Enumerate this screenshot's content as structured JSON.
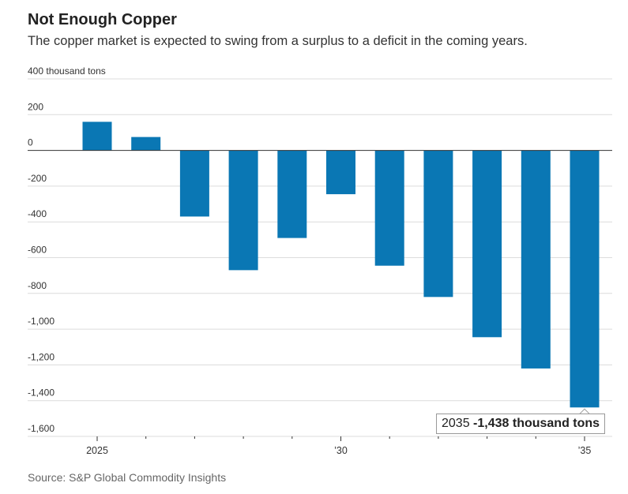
{
  "title": "Not Enough Copper",
  "subtitle": "The copper market is expected to swing from a surplus to a deficit in the coming years.",
  "source": "Source: S&P Global Commodity Insights",
  "chart_data": {
    "type": "bar",
    "title": "Not Enough Copper",
    "ylabel_unit": "400 thousand tons",
    "years": [
      2025,
      2026,
      2027,
      2028,
      2029,
      2030,
      2031,
      2032,
      2033,
      2034,
      2035
    ],
    "values": [
      160,
      75,
      -370,
      -670,
      -490,
      -245,
      -645,
      -820,
      -1045,
      -1220,
      -1438
    ],
    "ylim": [
      -1600,
      400
    ],
    "y_ticks": [
      {
        "value": 400,
        "label": "400 thousand tons"
      },
      {
        "value": 200,
        "label": "200"
      },
      {
        "value": 0,
        "label": "0"
      },
      {
        "value": -200,
        "label": "-200"
      },
      {
        "value": -400,
        "label": "-400"
      },
      {
        "value": -600,
        "label": "-600"
      },
      {
        "value": -800,
        "label": "-800"
      },
      {
        "value": -1000,
        "label": "-1,000"
      },
      {
        "value": -1200,
        "label": "-1,200"
      },
      {
        "value": -1400,
        "label": "-1,400"
      },
      {
        "value": -1600,
        "label": "-1,600"
      }
    ],
    "x_labels": [
      {
        "year": 2025,
        "label": "2025"
      },
      {
        "year": 2030,
        "label": "’30"
      },
      {
        "year": 2035,
        "label": "’35"
      }
    ],
    "bar_color": "#0a77b4",
    "grid": true,
    "annotation": {
      "year": 2035,
      "prefix": "2035",
      "value_text": "-1,438 thousand tons"
    }
  }
}
